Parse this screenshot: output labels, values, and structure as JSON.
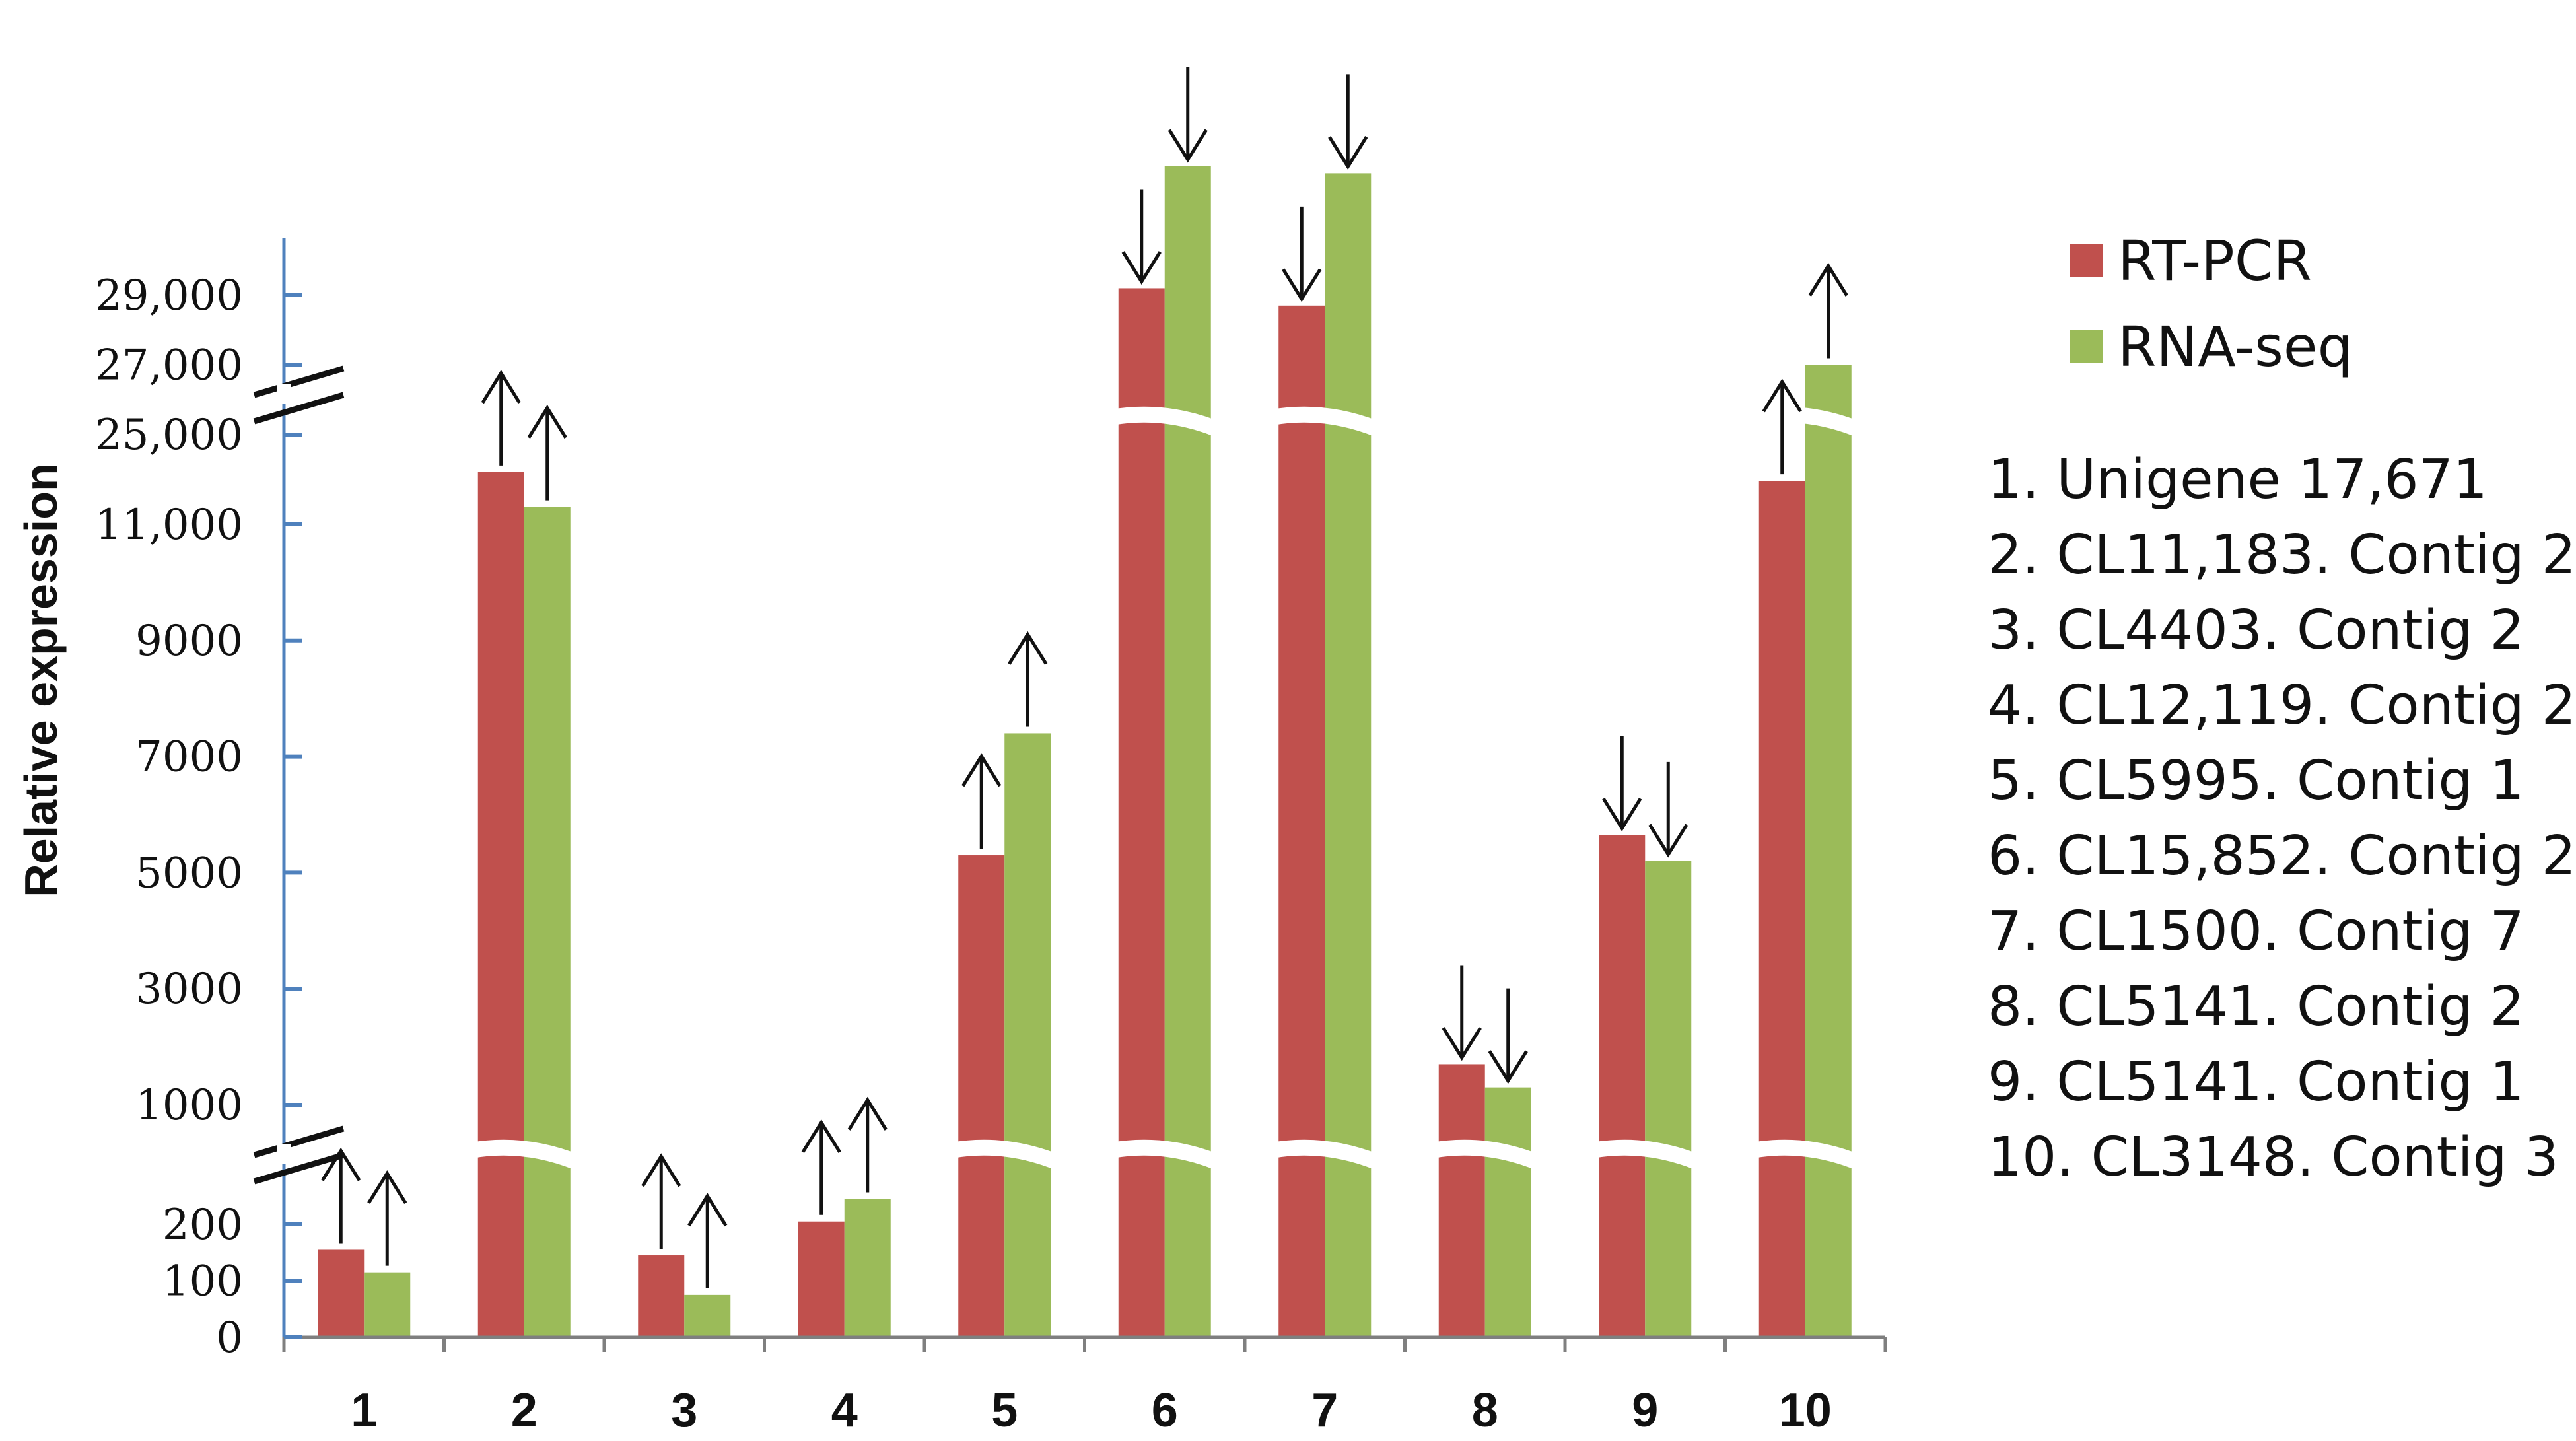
{
  "chart_data": {
    "type": "bar",
    "ylabel": "Relative expression",
    "categories": [
      "1",
      "2",
      "3",
      "4",
      "5",
      "6",
      "7",
      "8",
      "9",
      "10"
    ],
    "series": [
      {
        "name": "RT-PCR",
        "color": "#c0504d",
        "values": [
          155,
          11900,
          145,
          205,
          5300,
          29200,
          28700,
          1700,
          5650,
          11750
        ]
      },
      {
        "name": "RNA-seq",
        "color": "#9bbb59",
        "values": [
          115,
          11300,
          75,
          245,
          7400,
          32700,
          32500,
          1300,
          5200,
          27000
        ]
      }
    ],
    "arrows": {
      "rt_pcr": [
        "up",
        "up",
        "up",
        "up",
        "up",
        "down",
        "down",
        "down",
        "down",
        "up"
      ],
      "rna_seq": [
        "up",
        "up",
        "up",
        "up",
        "up",
        "down",
        "down",
        "down",
        "down",
        "up"
      ]
    },
    "y_axis_segments": [
      {
        "range": [
          0,
          200
        ],
        "ticks": [
          "0",
          "100",
          "200"
        ]
      },
      {
        "range": [
          1000,
          11000
        ],
        "ticks": [
          "1000",
          "3000",
          "5000",
          "7000",
          "9000",
          "11,000"
        ]
      },
      {
        "range": [
          25000,
          29000
        ],
        "ticks": [
          "25,000",
          "27,000",
          "29,000"
        ]
      }
    ],
    "axis_breaks": 2,
    "legend_position": "right"
  },
  "legend": [
    {
      "label": "RT-PCR",
      "color": "#c0504d"
    },
    {
      "label": "RNA-seq",
      "color": "#9bbb59"
    }
  ],
  "gene_list": [
    "1. Unigene 17,671",
    "2. CL11,183. Contig 2",
    "3. CL4403. Contig 2",
    "4. CL12,119. Contig 2",
    "5. CL5995. Contig 1",
    "6. CL15,852. Contig 2",
    "7. CL1500. Contig 7",
    "8. CL5141. Contig 2",
    "9. CL5141. Contig 1",
    "10. CL3148. Contig 3"
  ]
}
